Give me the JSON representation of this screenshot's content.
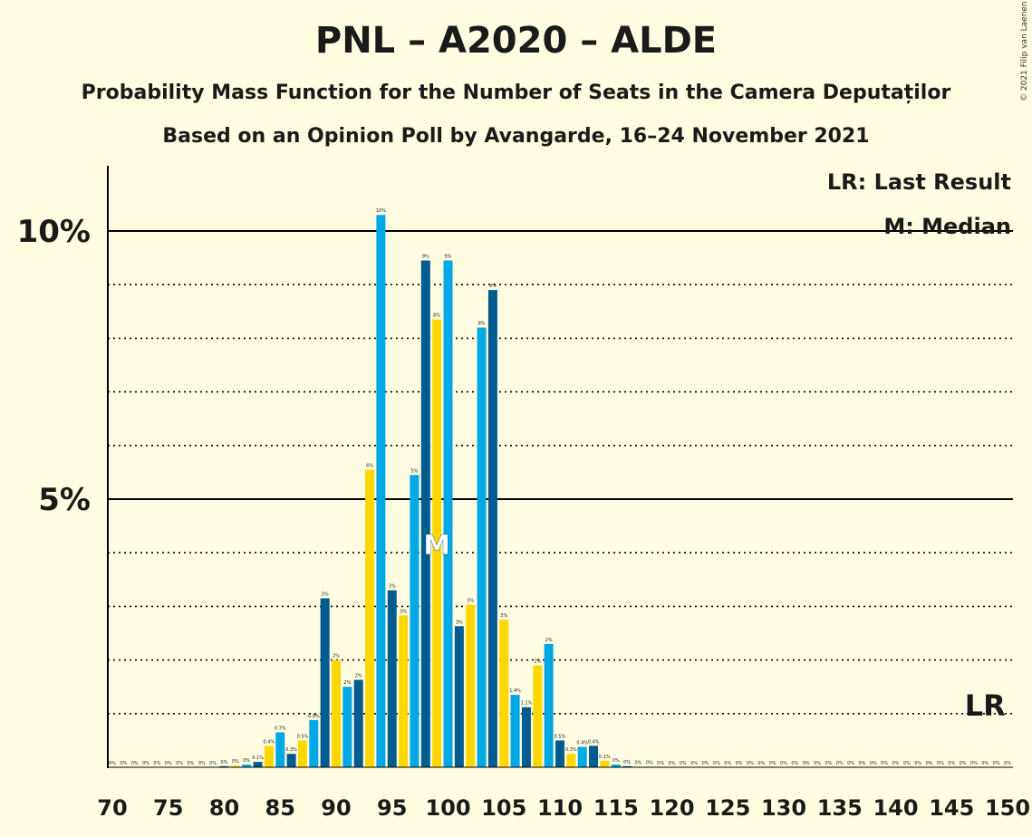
{
  "title": "PNL – A2020 – ALDE",
  "subtitle": "Probability Mass Function for the Number of Seats in the Camera Deputaților",
  "subtitle2": "Based on an Opinion Poll by Avangarde, 16–24 November 2021",
  "copyright": "© 2021 Filip van Laenen",
  "colors": {
    "background": "#FFFCE1",
    "light_blue": "#00A8E5",
    "dark_blue": "#005C8F",
    "yellow": "#FFD700",
    "text": "#1a1a1a"
  },
  "chart_data": {
    "type": "bar",
    "title": "PNL – A2020 – ALDE",
    "x_tick_labels": [
      "70",
      "75",
      "80",
      "85",
      "90",
      "95",
      "100",
      "105",
      "110",
      "115",
      "120",
      "125",
      "130",
      "135",
      "140",
      "145",
      "150"
    ],
    "y_tick_labels": [
      "5%",
      "10%"
    ],
    "ylim": [
      0,
      11.2
    ],
    "xlim": [
      70,
      150
    ],
    "grid": "solid lines at 5% and 10%, dotted lines every 1%",
    "legend": {
      "position": "top-right",
      "entries": [
        "LR: Last Result",
        "M: Median"
      ]
    },
    "median_marker": {
      "x": 99,
      "label": "M"
    },
    "last_result_marker": {
      "x": 148,
      "label": "LR"
    },
    "bar_color_cycle": [
      "light_blue",
      "dark_blue",
      "yellow"
    ],
    "x": [
      70,
      71,
      72,
      73,
      74,
      75,
      76,
      77,
      78,
      79,
      80,
      81,
      82,
      83,
      84,
      85,
      86,
      87,
      88,
      89,
      90,
      91,
      92,
      93,
      94,
      95,
      96,
      97,
      98,
      99,
      100,
      101,
      102,
      103,
      104,
      105,
      106,
      107,
      108,
      109,
      110,
      111,
      112,
      113,
      114,
      115,
      116,
      117,
      118,
      119,
      120,
      121,
      122,
      123,
      124,
      125,
      126,
      127,
      128,
      129,
      130,
      131,
      132,
      133,
      134,
      135,
      136,
      137,
      138,
      139,
      140,
      141,
      142,
      143,
      144,
      145,
      146,
      147,
      148,
      149,
      150
    ],
    "values": [
      0,
      0,
      0,
      0,
      0,
      0,
      0,
      0,
      0,
      0,
      0.02,
      0.03,
      0.05,
      0.1,
      0.4,
      0.65,
      0.25,
      0.5,
      0.88,
      3.15,
      2,
      1.5,
      1.63,
      5.55,
      10.3,
      3.3,
      2.83,
      5.45,
      9.45,
      8.35,
      9.45,
      2.63,
      3.03,
      8.2,
      8.9,
      2.75,
      1.35,
      1.12,
      1.9,
      2.3,
      0.5,
      0.25,
      0.38,
      0.4,
      0.12,
      0.05,
      0.02,
      0.01,
      0.01,
      0,
      0,
      0,
      0,
      0,
      0,
      0,
      0,
      0,
      0,
      0,
      0,
      0,
      0,
      0,
      0,
      0,
      0,
      0,
      0,
      0,
      0,
      0,
      0,
      0,
      0,
      0,
      0,
      0,
      0,
      0,
      0
    ],
    "data_labels": [
      "0%",
      "0%",
      "0%",
      "0%",
      "0%",
      "0%",
      "0%",
      "0%",
      "0%",
      "0%",
      "0%",
      "0%",
      "0%",
      "0.1%",
      "0.4%",
      "0.7%",
      "0.3%",
      "0.5%",
      "0.9%",
      "3%",
      "2%",
      "2%",
      "2%",
      "6%",
      "10%",
      "3%",
      "3%",
      "5%",
      "9%",
      "8%",
      "9%",
      "3%",
      "3%",
      "8%",
      "9%",
      "3%",
      "1.4%",
      "1.1%",
      "2%",
      "2%",
      "0.5%",
      "0.3%",
      "0.4%",
      "0.4%",
      "0.1%",
      "0%",
      "0%",
      "0%",
      "0%",
      "0%",
      "0%",
      "0%",
      "0%",
      "0%",
      "0%",
      "0%",
      "0%",
      "0%",
      "0%",
      "0%",
      "0%",
      "0%",
      "0%",
      "0%",
      "0%",
      "0%",
      "0%",
      "0%",
      "0%",
      "0%",
      "0%",
      "0%",
      "0%",
      "0%",
      "0%",
      "0%",
      "0%",
      "0%",
      "0%",
      "0%",
      "0%"
    ]
  }
}
